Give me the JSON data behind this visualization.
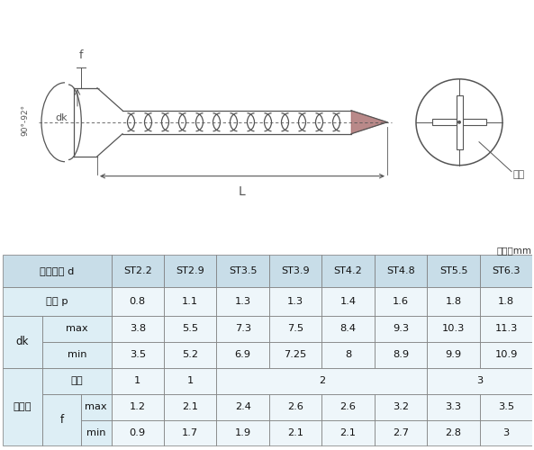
{
  "title_unit": "单位：mm",
  "bg_color": "#ffffff",
  "header_bg": "#c8dde8",
  "cell_bg_light": "#ddeef5",
  "cell_bg_white": "#eef6fa",
  "border_color": "#777777",
  "text_color": "#111111",
  "screw_color": "#555555",
  "col_labels": [
    "ST2.2",
    "ST2.9",
    "ST3.5",
    "ST3.9",
    "ST4.2",
    "ST4.8",
    "ST5.5",
    "ST6.3"
  ],
  "row_luoju": [
    "0.8",
    "1.1",
    "1.3",
    "1.3",
    "1.4",
    "1.6",
    "1.8",
    "1.8"
  ],
  "row_dk_max": [
    "3.8",
    "5.5",
    "7.3",
    "7.5",
    "8.4",
    "9.3",
    "10.3",
    "11.3"
  ],
  "row_dk_min": [
    "3.5",
    "5.2",
    "6.9",
    "7.25",
    "8",
    "8.9",
    "9.9",
    "10.9"
  ],
  "row_caohao": [
    "1",
    "1",
    "2",
    "2",
    "2",
    "2",
    "3",
    "3"
  ],
  "row_f_max": [
    "1.2",
    "2.1",
    "2.4",
    "2.6",
    "2.6",
    "3.2",
    "3.3",
    "3.5"
  ],
  "row_f_min": [
    "0.9",
    "1.7",
    "1.9",
    "2.1",
    "2.1",
    "2.7",
    "2.8",
    "3"
  ]
}
